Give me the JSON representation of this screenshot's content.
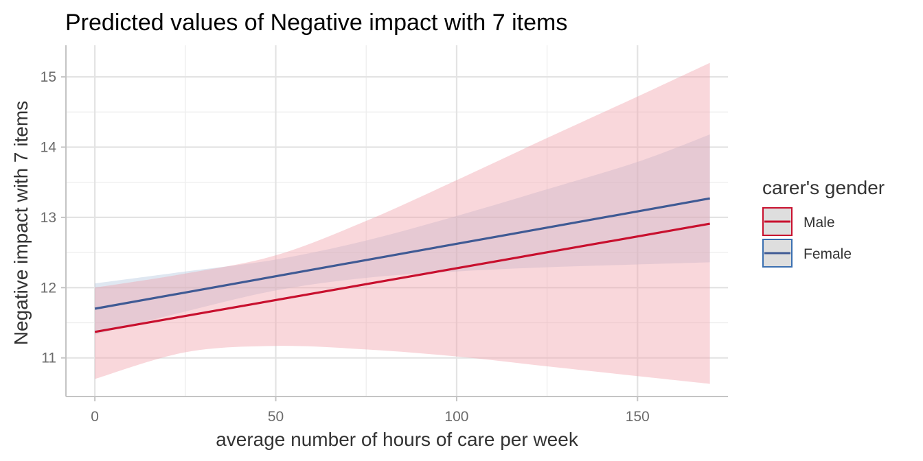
{
  "chart_data": {
    "type": "line",
    "title": "Predicted values of Negative impact with 7 items",
    "xlabel": "average number of hours of care per week",
    "ylabel": "Negative impact with 7 items",
    "xlim": [
      -8,
      175
    ],
    "ylim": [
      10.45,
      15.45
    ],
    "x_ticks": [
      0,
      50,
      100,
      150
    ],
    "y_ticks": [
      11,
      12,
      13,
      14,
      15
    ],
    "x_tick_labels": [
      "0",
      "50",
      "100",
      "150"
    ],
    "y_tick_labels": [
      "11",
      "12",
      "13",
      "14",
      "15"
    ],
    "grid": true,
    "legend": {
      "title": "carer's gender",
      "position": "right",
      "entries": [
        "Male",
        "Female"
      ]
    },
    "series": [
      {
        "name": "Male",
        "color": "#c8102e",
        "fill": "#f0a0aa",
        "x": [
          0,
          170
        ],
        "y": [
          11.37,
          12.91
        ],
        "ci_lower": {
          "x": [
            0,
            25,
            50,
            75,
            100,
            125,
            150,
            170
          ],
          "y": [
            10.7,
            11.08,
            11.17,
            11.12,
            11.02,
            10.88,
            10.74,
            10.63
          ]
        },
        "ci_upper": {
          "x": [
            0,
            25,
            50,
            75,
            100,
            125,
            150,
            170
          ],
          "y": [
            12.0,
            12.2,
            12.46,
            12.95,
            13.53,
            14.13,
            14.72,
            15.2
          ]
        }
      },
      {
        "name": "Female",
        "color": "#3f5a94",
        "fill": "#b3c6de",
        "x": [
          0,
          170
        ],
        "y": [
          11.7,
          13.27
        ],
        "ci_lower": {
          "x": [
            0,
            25,
            50,
            75,
            100,
            125,
            150,
            170
          ],
          "y": [
            11.33,
            11.66,
            11.96,
            12.14,
            12.23,
            12.29,
            12.33,
            12.36
          ]
        },
        "ci_upper": {
          "x": [
            0,
            25,
            50,
            75,
            100,
            125,
            150,
            170
          ],
          "y": [
            12.06,
            12.23,
            12.4,
            12.67,
            13.02,
            13.4,
            13.79,
            14.18
          ]
        }
      }
    ]
  }
}
